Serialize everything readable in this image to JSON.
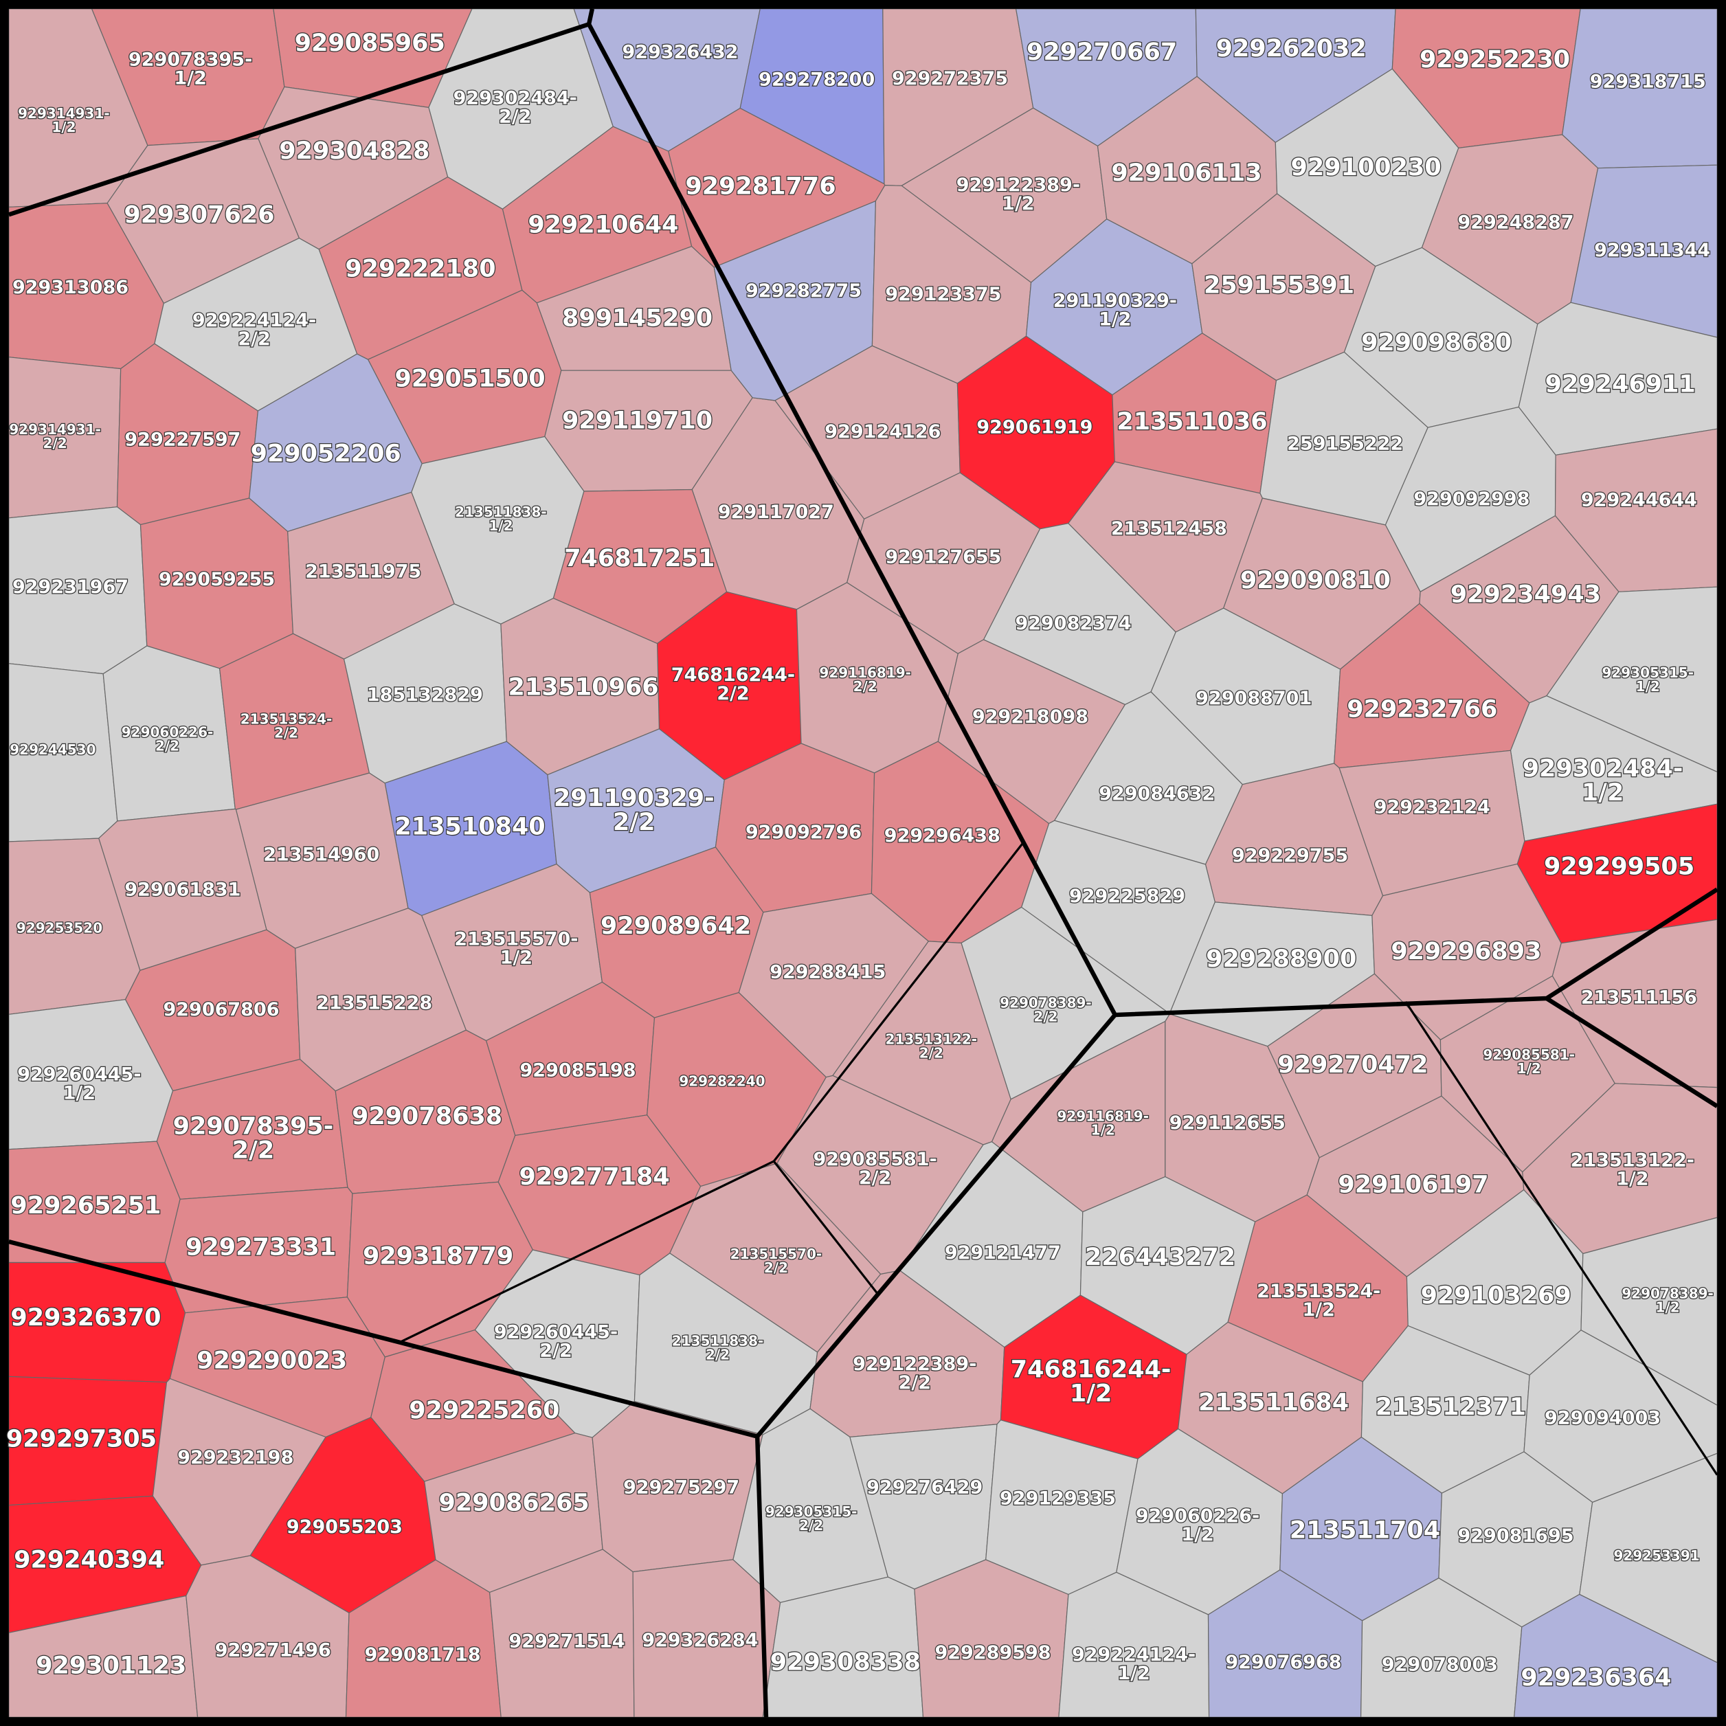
{
  "cells": [
    {
      "label": "929314931-1/2",
      "color": "#d9aaae"
    },
    {
      "label": "929078395-1/2",
      "color": "#e0888d"
    },
    {
      "label": "929085965",
      "color": "#e0888d"
    },
    {
      "label": "929302484-2/2",
      "color": "#d3d3d3"
    },
    {
      "label": "929304828",
      "color": "#d9aaae"
    },
    {
      "label": "929307626",
      "color": "#d9aaae"
    },
    {
      "label": "929313086",
      "color": "#e0888d"
    },
    {
      "label": "929210644",
      "color": "#e0888d"
    },
    {
      "label": "929222180",
      "color": "#e0888d"
    },
    {
      "label": "929224124-2/2",
      "color": "#d3d3d3"
    },
    {
      "label": "899145290",
      "color": "#d9aaae"
    },
    {
      "label": "929051500",
      "color": "#e0888d"
    },
    {
      "label": "929314931-2/2",
      "color": "#d9aaae"
    },
    {
      "label": "929227597",
      "color": "#e0888d"
    },
    {
      "label": "929052206",
      "color": "#b0b3dc"
    },
    {
      "label": "929119710",
      "color": "#d9aaae"
    },
    {
      "label": "213511838-1/2",
      "color": "#d3d3d3"
    },
    {
      "label": "929117027",
      "color": "#d9aaae"
    },
    {
      "label": "929231967",
      "color": "#d3d3d3"
    },
    {
      "label": "929059255",
      "color": "#e0888d"
    },
    {
      "label": "213511975",
      "color": "#d9aaae"
    },
    {
      "label": "746817251",
      "color": "#e0888d"
    },
    {
      "label": "746816244-2/2",
      "color": "#fe2433"
    },
    {
      "label": "929116819-2/2",
      "color": "#d9aaae"
    },
    {
      "label": "929244530",
      "color": "#d3d3d3"
    },
    {
      "label": "929060226-2/2",
      "color": "#d3d3d3"
    },
    {
      "label": "213513524-2/2",
      "color": "#e0888d"
    },
    {
      "label": "185132829",
      "color": "#d3d3d3"
    },
    {
      "label": "213510966",
      "color": "#d9aaae"
    },
    {
      "label": "213510840",
      "color": "#9399e4"
    },
    {
      "label": "291190329-2/2",
      "color": "#b0b3dc"
    },
    {
      "label": "929092796",
      "color": "#e0888d"
    },
    {
      "label": "929296438",
      "color": "#e0888d"
    },
    {
      "label": "213514960",
      "color": "#d9aaae"
    },
    {
      "label": "929061831",
      "color": "#d9aaae"
    },
    {
      "label": "929253520",
      "color": "#d9aaae"
    },
    {
      "label": "213515570-1/2",
      "color": "#d9aaae"
    },
    {
      "label": "929089642",
      "color": "#e0888d"
    },
    {
      "label": "929288415",
      "color": "#d9aaae"
    },
    {
      "label": "929067806",
      "color": "#e0888d"
    },
    {
      "label": "213515228",
      "color": "#d9aaae"
    },
    {
      "label": "929260445-1/2",
      "color": "#d3d3d3"
    },
    {
      "label": "929085198",
      "color": "#e0888d"
    },
    {
      "label": "929282240",
      "color": "#e0888d"
    },
    {
      "label": "213513122-2/2",
      "color": "#d9aaae"
    },
    {
      "label": "929078389-2/2",
      "color": "#d3d3d3"
    },
    {
      "label": "929078395-2/2",
      "color": "#e0888d"
    },
    {
      "label": "929078638",
      "color": "#e0888d"
    },
    {
      "label": "929277184",
      "color": "#e0888d"
    },
    {
      "label": "929085581-2/2",
      "color": "#d9aaae"
    },
    {
      "label": "929265251",
      "color": "#e0888d"
    },
    {
      "label": "929273331",
      "color": "#e0888d"
    },
    {
      "label": "929318779",
      "color": "#e0888d"
    },
    {
      "label": "213515570-2/2",
      "color": "#d9aaae"
    },
    {
      "label": "929326370",
      "color": "#fe2433"
    },
    {
      "label": "929290023",
      "color": "#e0888d"
    },
    {
      "label": "929260445-2/2",
      "color": "#d3d3d3"
    },
    {
      "label": "213511838-2/2",
      "color": "#d3d3d3"
    },
    {
      "label": "929225260",
      "color": "#e0888d"
    },
    {
      "label": "929297305",
      "color": "#fe2433"
    },
    {
      "label": "929232198",
      "color": "#d9aaae"
    },
    {
      "label": "929055203",
      "color": "#fe2433"
    },
    {
      "label": "929086265",
      "color": "#d9aaae"
    },
    {
      "label": "929275297",
      "color": "#d9aaae"
    },
    {
      "label": "929240394",
      "color": "#fe2433"
    },
    {
      "label": "929301123",
      "color": "#d9aaae"
    },
    {
      "label": "929271496",
      "color": "#d9aaae"
    },
    {
      "label": "929081718",
      "color": "#e0888d"
    },
    {
      "label": "929271514",
      "color": "#d9aaae"
    },
    {
      "label": "929326284",
      "color": "#d9aaae"
    },
    {
      "label": "929326432",
      "color": "#b0b3dc"
    },
    {
      "label": "929278200",
      "color": "#9399e4"
    },
    {
      "label": "929272375",
      "color": "#d9aaae"
    },
    {
      "label": "929270667",
      "color": "#b0b3dc"
    },
    {
      "label": "929262032",
      "color": "#b0b3dc"
    },
    {
      "label": "929252230",
      "color": "#e0888d"
    },
    {
      "label": "929318715",
      "color": "#b0b3dc"
    },
    {
      "label": "929281776",
      "color": "#e0888d"
    },
    {
      "label": "929122389-1/2",
      "color": "#d9aaae"
    },
    {
      "label": "929106113",
      "color": "#d9aaae"
    },
    {
      "label": "929100230",
      "color": "#d3d3d3"
    },
    {
      "label": "929248287",
      "color": "#d9aaae"
    },
    {
      "label": "929311344",
      "color": "#b0b3dc"
    },
    {
      "label": "929282775",
      "color": "#b0b3dc"
    },
    {
      "label": "929123375",
      "color": "#d9aaae"
    },
    {
      "label": "291190329-1/2",
      "color": "#b0b3dc"
    },
    {
      "label": "259155391",
      "color": "#d9aaae"
    },
    {
      "label": "929098680",
      "color": "#d3d3d3"
    },
    {
      "label": "929246911",
      "color": "#d3d3d3"
    },
    {
      "label": "929124126",
      "color": "#d9aaae"
    },
    {
      "label": "929061919",
      "color": "#fe2433"
    },
    {
      "label": "213511036",
      "color": "#e0888d"
    },
    {
      "label": "259155222",
      "color": "#d3d3d3"
    },
    {
      "label": "929092998",
      "color": "#d3d3d3"
    },
    {
      "label": "929244644",
      "color": "#d9aaae"
    },
    {
      "label": "929127655",
      "color": "#d9aaae"
    },
    {
      "label": "213512458",
      "color": "#d9aaae"
    },
    {
      "label": "929090810",
      "color": "#d9aaae"
    },
    {
      "label": "929234943",
      "color": "#d9aaae"
    },
    {
      "label": "929082374",
      "color": "#d3d3d3"
    },
    {
      "label": "929305315-1/2",
      "color": "#d3d3d3"
    },
    {
      "label": "929218098",
      "color": "#d9aaae"
    },
    {
      "label": "929088701",
      "color": "#d3d3d3"
    },
    {
      "label": "929232766",
      "color": "#e0888d"
    },
    {
      "label": "929084632",
      "color": "#d3d3d3"
    },
    {
      "label": "929302484-1/2",
      "color": "#d3d3d3"
    },
    {
      "label": "929232124",
      "color": "#d9aaae"
    },
    {
      "label": "929229755",
      "color": "#d9aaae"
    },
    {
      "label": "929299505",
      "color": "#fe2433"
    },
    {
      "label": "929225829",
      "color": "#d3d3d3"
    },
    {
      "label": "929288900",
      "color": "#d3d3d3"
    },
    {
      "label": "929296893",
      "color": "#d9aaae"
    },
    {
      "label": "213511156",
      "color": "#d9aaae"
    },
    {
      "label": "929270472",
      "color": "#d9aaae"
    },
    {
      "label": "929085581-1/2",
      "color": "#d9aaae"
    },
    {
      "label": "929116819-1/2",
      "color": "#d9aaae"
    },
    {
      "label": "929112655",
      "color": "#d9aaae"
    },
    {
      "label": "929106197",
      "color": "#d9aaae"
    },
    {
      "label": "213513122-1/2",
      "color": "#d9aaae"
    },
    {
      "label": "929121477",
      "color": "#d3d3d3"
    },
    {
      "label": "226443272",
      "color": "#d3d3d3"
    },
    {
      "label": "213513524-1/2",
      "color": "#e0888d"
    },
    {
      "label": "929103269",
      "color": "#d3d3d3"
    },
    {
      "label": "929078389-1/2",
      "color": "#d3d3d3"
    },
    {
      "label": "929122389-2/2",
      "color": "#d9aaae"
    },
    {
      "label": "746816244-1/2",
      "color": "#fe2433"
    },
    {
      "label": "213511684",
      "color": "#d9aaae"
    },
    {
      "label": "213512371",
      "color": "#d3d3d3"
    },
    {
      "label": "929094003",
      "color": "#d3d3d3"
    },
    {
      "label": "929305315-2/2",
      "color": "#d3d3d3"
    },
    {
      "label": "929276429",
      "color": "#d3d3d3"
    },
    {
      "label": "929129335",
      "color": "#d3d3d3"
    },
    {
      "label": "929060226-1/2",
      "color": "#d3d3d3"
    },
    {
      "label": "213511704",
      "color": "#b0b3dc"
    },
    {
      "label": "929081695",
      "color": "#d3d3d3"
    },
    {
      "label": "929253391",
      "color": "#d3d3d3"
    },
    {
      "label": "929308338",
      "color": "#d3d3d3"
    },
    {
      "label": "929289598",
      "color": "#d9aaae"
    },
    {
      "label": "929224124-1/2",
      "color": "#d3d3d3"
    },
    {
      "label": "929076968",
      "color": "#b0b3dc"
    },
    {
      "label": "929078003",
      "color": "#d3d3d3"
    },
    {
      "label": "929236364",
      "color": "#b0b3dc"
    }
  ]
}
